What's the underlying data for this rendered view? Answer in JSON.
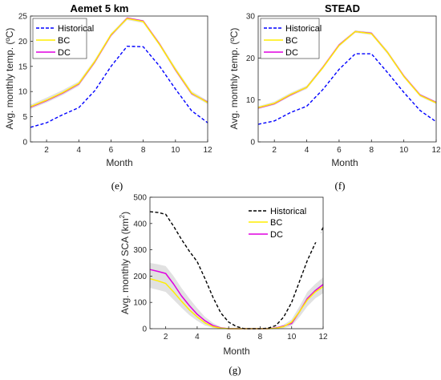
{
  "chart_data": [
    {
      "id": "e",
      "type": "line",
      "title": "Aemet 5 km",
      "xlabel": "Month",
      "ylabel": "Avg. monthly temp. (ºC)",
      "caption": "(e)",
      "xlim": [
        1,
        12
      ],
      "ylim": [
        0,
        25
      ],
      "xticks": [
        2,
        4,
        6,
        8,
        10,
        12
      ],
      "yticks": [
        0,
        5,
        10,
        15,
        20,
        25
      ],
      "legend_position": "top-left",
      "x": [
        1,
        2,
        3,
        4,
        5,
        6,
        7,
        8,
        9,
        10,
        11,
        12
      ],
      "series": [
        {
          "name": "Historical",
          "color": "#0000ff",
          "style": "dashed",
          "values": [
            2.9,
            3.8,
            5.4,
            6.8,
            10.2,
            15.0,
            19.0,
            18.9,
            15.1,
            10.5,
            6.2,
            3.8
          ]
        },
        {
          "name": "BC",
          "color": "#ffee00",
          "style": "solid",
          "values": [
            7.0,
            8.3,
            9.8,
            11.6,
            16.0,
            21.3,
            24.5,
            23.9,
            19.4,
            14.4,
            9.7,
            7.8
          ]
        },
        {
          "name": "DC",
          "color": "#e000e0",
          "style": "solid",
          "values": [
            6.9,
            8.2,
            9.7,
            11.5,
            15.9,
            21.2,
            24.6,
            24.0,
            19.5,
            14.3,
            9.6,
            7.9
          ]
        }
      ],
      "band": {
        "upper": [
          7.4,
          8.8,
          10.3,
          12.0,
          16.4,
          21.6,
          24.8,
          24.2,
          19.8,
          14.8,
          10.1,
          8.2
        ],
        "lower": [
          6.5,
          7.8,
          9.3,
          11.1,
          15.6,
          20.9,
          24.2,
          23.6,
          19.1,
          14.0,
          9.3,
          7.5
        ]
      }
    },
    {
      "id": "f",
      "type": "line",
      "title": "STEAD",
      "xlabel": "Month",
      "ylabel": "Avg. monthly temp. (ºC)",
      "caption": "(f)",
      "xlim": [
        1,
        12
      ],
      "ylim": [
        0,
        30
      ],
      "xticks": [
        2,
        4,
        6,
        8,
        10,
        12
      ],
      "yticks": [
        0,
        10,
        20,
        30
      ],
      "legend_position": "top-left",
      "x": [
        1,
        2,
        3,
        4,
        5,
        6,
        7,
        8,
        9,
        10,
        11,
        12
      ],
      "series": [
        {
          "name": "Historical",
          "color": "#0000ff",
          "style": "dashed",
          "values": [
            4.2,
            5.0,
            7.0,
            8.5,
            12.5,
            17.3,
            21.0,
            21.0,
            16.5,
            11.8,
            7.5,
            4.8
          ]
        },
        {
          "name": "BC",
          "color": "#ffee00",
          "style": "solid",
          "values": [
            8.2,
            9.2,
            11.3,
            13.0,
            17.7,
            23.0,
            26.3,
            25.8,
            21.3,
            15.6,
            11.1,
            9.3
          ]
        },
        {
          "name": "DC",
          "color": "#e000e0",
          "style": "solid",
          "values": [
            8.1,
            9.1,
            11.2,
            13.0,
            17.8,
            23.1,
            26.3,
            25.9,
            21.3,
            15.7,
            11.2,
            9.4
          ]
        }
      ],
      "band": {
        "upper": [
          8.5,
          9.6,
          11.7,
          13.4,
          18.1,
          23.4,
          26.6,
          26.2,
          21.7,
          16.0,
          11.5,
          9.7
        ],
        "lower": [
          7.8,
          8.8,
          10.9,
          12.6,
          17.4,
          22.7,
          26.0,
          25.5,
          20.9,
          15.3,
          10.8,
          9.0
        ]
      }
    },
    {
      "id": "g",
      "type": "line",
      "title": "",
      "xlabel": "Month",
      "ylabel_main": "Avg. monthly SCA (km",
      "ylabel_sup": "2",
      "ylabel_end": ")",
      "caption": "(g)",
      "xlim": [
        1,
        12
      ],
      "ylim": [
        0,
        500
      ],
      "xticks": [
        2,
        4,
        6,
        8,
        10,
        12
      ],
      "yticks": [
        0,
        100,
        200,
        300,
        400,
        500
      ],
      "legend_position": "top-right",
      "x": [
        1,
        1.5,
        2,
        2.5,
        3,
        3.5,
        4,
        4.5,
        5,
        5.5,
        6,
        6.5,
        7,
        7.5,
        8,
        8.5,
        9,
        9.5,
        10,
        10.5,
        11,
        11.5,
        12
      ],
      "series": [
        {
          "name": "Historical",
          "color": "#000000",
          "style": "dashed",
          "values": [
            445,
            442,
            435,
            390,
            340,
            295,
            255,
            190,
            120,
            60,
            25,
            8,
            0,
            0,
            0,
            2,
            12,
            45,
            100,
            180,
            260,
            325,
            385
          ]
        },
        {
          "name": "BC",
          "color": "#ffee00",
          "style": "solid",
          "values": [
            190,
            182,
            172,
            140,
            105,
            72,
            45,
            22,
            8,
            2,
            0,
            0,
            0,
            0,
            0,
            0,
            2,
            8,
            25,
            65,
            110,
            140,
            160
          ]
        },
        {
          "name": "DC",
          "color": "#e000e0",
          "style": "solid",
          "values": [
            225,
            218,
            210,
            170,
            125,
            88,
            55,
            30,
            12,
            3,
            0,
            0,
            0,
            0,
            0,
            0,
            3,
            10,
            20,
            65,
            115,
            145,
            168
          ]
        }
      ],
      "band": {
        "upper": [
          250,
          245,
          238,
          200,
          155,
          115,
          78,
          45,
          22,
          7,
          1,
          0,
          0,
          0,
          0,
          0,
          5,
          16,
          35,
          85,
          140,
          170,
          195
        ],
        "lower": [
          155,
          148,
          140,
          110,
          80,
          52,
          30,
          12,
          3,
          0,
          0,
          0,
          0,
          0,
          0,
          0,
          0,
          2,
          10,
          45,
          85,
          115,
          135
        ]
      }
    }
  ]
}
